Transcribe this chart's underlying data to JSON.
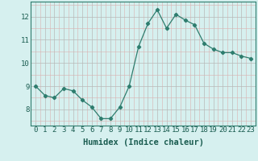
{
  "x": [
    0,
    1,
    2,
    3,
    4,
    5,
    6,
    7,
    8,
    9,
    10,
    11,
    12,
    13,
    14,
    15,
    16,
    17,
    18,
    19,
    20,
    21,
    22,
    23
  ],
  "y": [
    9.0,
    8.6,
    8.5,
    8.9,
    8.8,
    8.4,
    8.1,
    7.6,
    7.6,
    8.1,
    9.0,
    10.7,
    11.7,
    12.3,
    11.5,
    12.1,
    11.85,
    11.65,
    10.85,
    10.6,
    10.45,
    10.45,
    10.3,
    10.2
  ],
  "line_color": "#2e7d6e",
  "marker": "D",
  "marker_size": 2.2,
  "bg_color": "#d6f0ef",
  "grid_color_major": "#b8b8b8",
  "grid_color_minor": "#dbb0b0",
  "xlabel": "Humidex (Indice chaleur)",
  "ylabel": "",
  "title": "",
  "xlim": [
    -0.5,
    23.5
  ],
  "ylim": [
    7.3,
    12.65
  ],
  "yticks": [
    8,
    9,
    10,
    11,
    12
  ],
  "xtick_labels": [
    "0",
    "1",
    "2",
    "3",
    "4",
    "5",
    "6",
    "7",
    "8",
    "9",
    "10",
    "11",
    "12",
    "13",
    "14",
    "15",
    "16",
    "17",
    "18",
    "19",
    "20",
    "21",
    "22",
    "23"
  ],
  "xlabel_fontsize": 7.5,
  "tick_fontsize": 6.5
}
